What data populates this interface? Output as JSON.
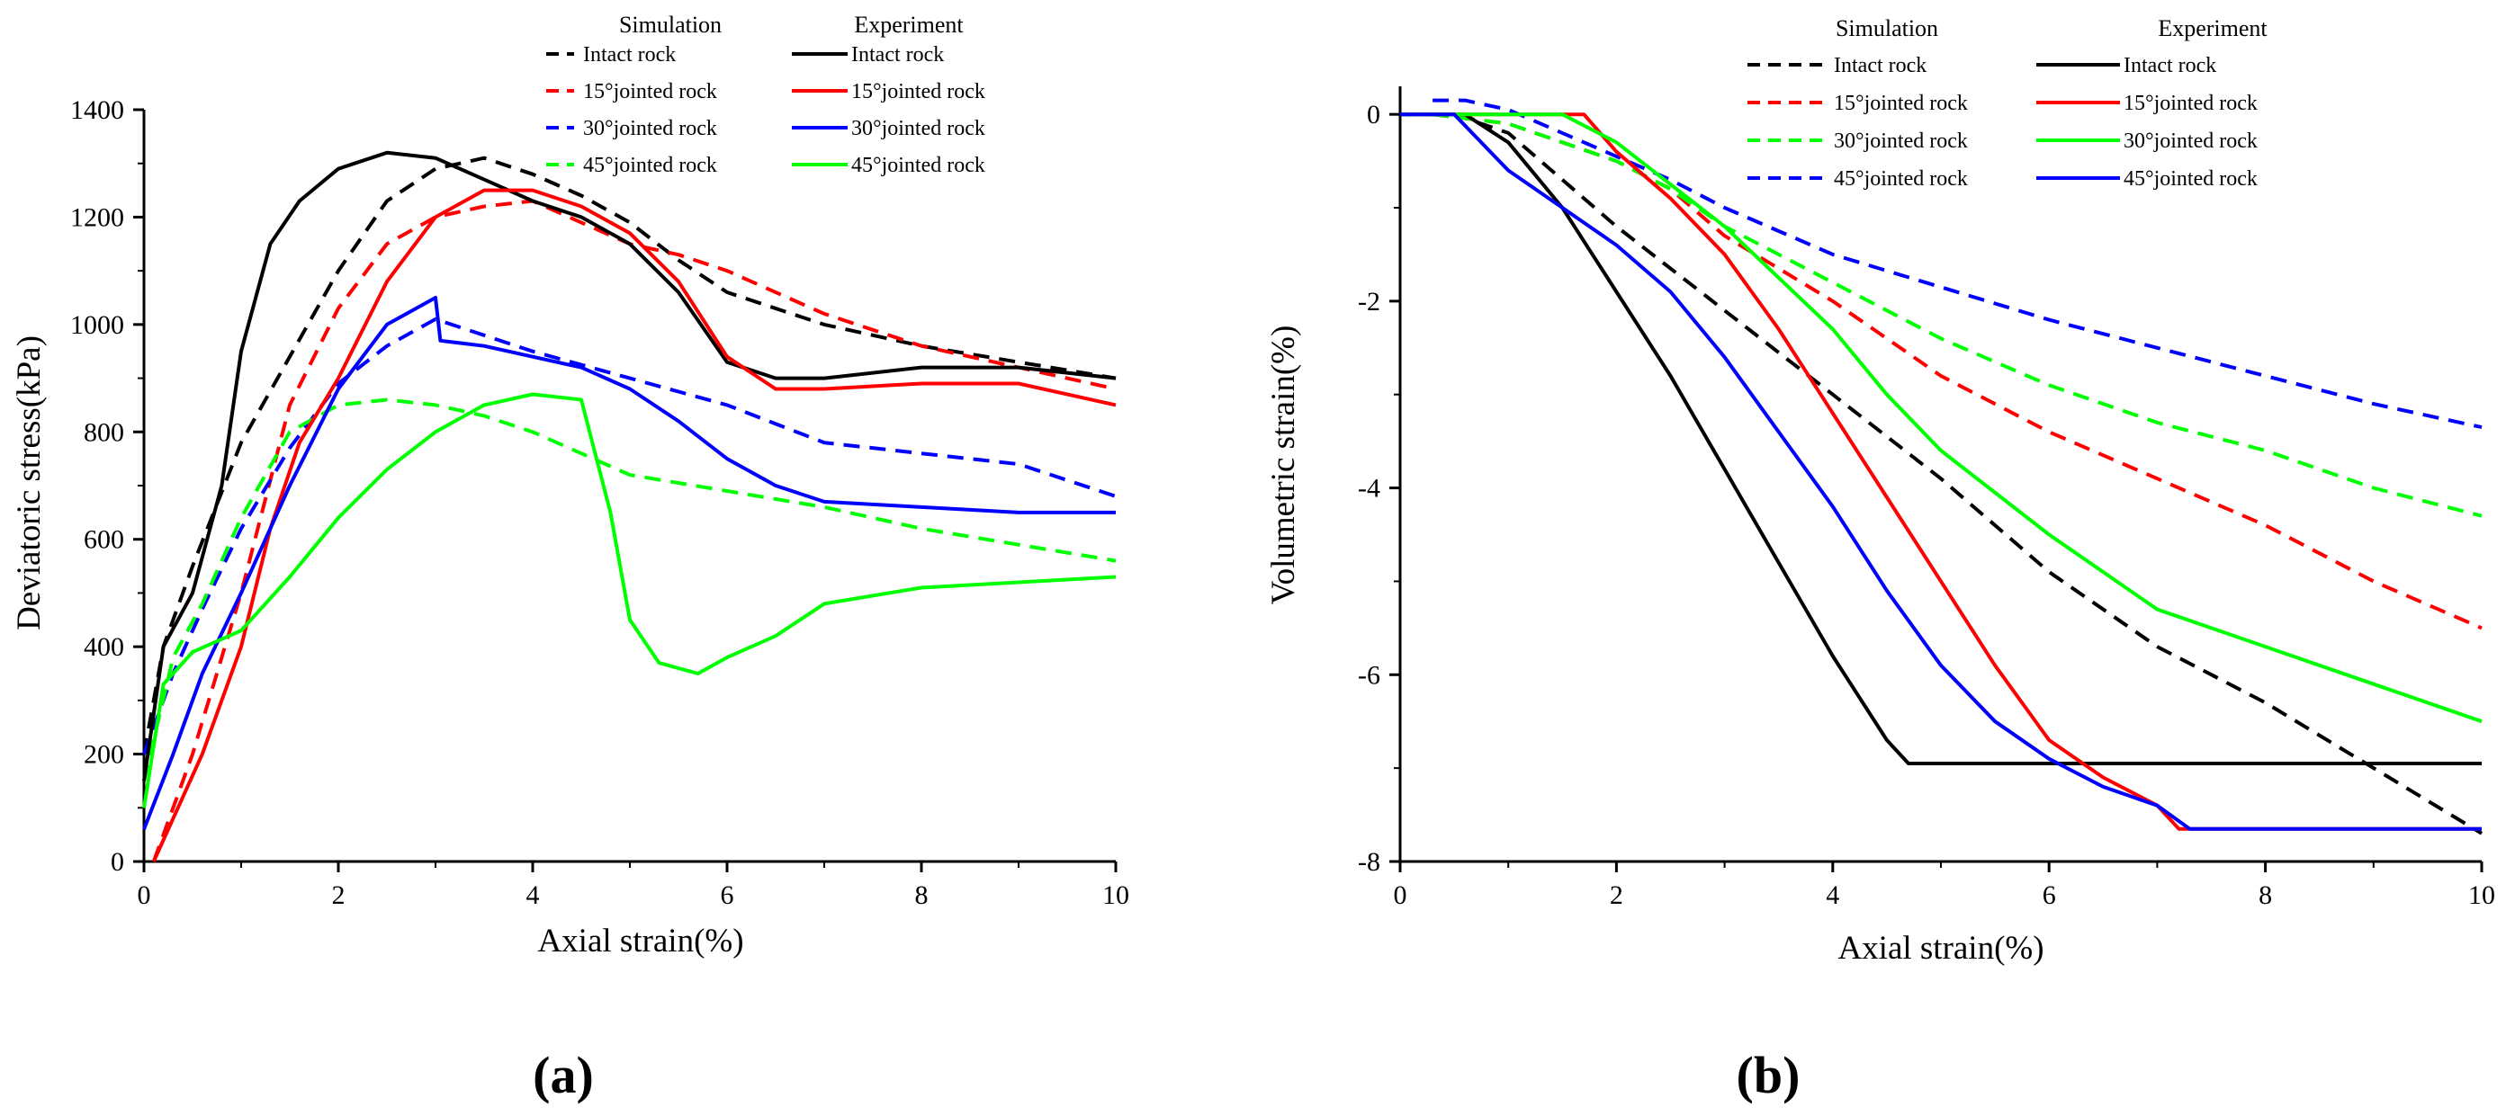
{
  "chart_data": [
    {
      "type": "line",
      "panel_label": "(a)",
      "xlabel": "Axial strain(%)",
      "ylabel": "Deviatoric stress(kPa)",
      "xlim": [
        0,
        10
      ],
      "ylim": [
        0,
        1400
      ],
      "xticks": [
        "0",
        "2",
        "4",
        "6",
        "8",
        "10"
      ],
      "yticks": [
        "0",
        "200",
        "400",
        "600",
        "800",
        "1000",
        "1200",
        "1400"
      ],
      "legend_headers": {
        "simulation": "Simulation",
        "experiment": "Experiment"
      },
      "series": [
        {
          "name": "Intact rock",
          "group": "Simulation",
          "color": "#000000",
          "dash": true,
          "x": [
            0,
            0.2,
            0.5,
            1,
            1.5,
            2,
            2.5,
            3,
            3.5,
            4,
            4.5,
            5,
            5.5,
            6,
            7,
            8,
            9,
            10
          ],
          "y": [
            200,
            400,
            550,
            780,
            940,
            1100,
            1230,
            1290,
            1310,
            1280,
            1240,
            1190,
            1120,
            1060,
            1000,
            960,
            930,
            900
          ]
        },
        {
          "name": "15°jointed rock",
          "group": "Simulation",
          "color": "#ff0000",
          "dash": true,
          "x": [
            0.1,
            0.5,
            1,
            1.5,
            2,
            2.5,
            3,
            3.5,
            4,
            4.5,
            5,
            5.5,
            6,
            7,
            8,
            9,
            10
          ],
          "y": [
            0,
            200,
            500,
            850,
            1030,
            1150,
            1200,
            1220,
            1230,
            1190,
            1150,
            1130,
            1100,
            1020,
            960,
            920,
            880
          ]
        },
        {
          "name": "30°jointed rock",
          "group": "Simulation",
          "color": "#0000ff",
          "dash": true,
          "x": [
            0,
            0.3,
            0.6,
            1,
            1.5,
            2,
            2.5,
            3,
            3.5,
            4,
            5,
            6,
            7,
            8,
            9,
            10
          ],
          "y": [
            200,
            350,
            470,
            620,
            770,
            890,
            960,
            1010,
            980,
            950,
            900,
            850,
            780,
            760,
            740,
            680
          ]
        },
        {
          "name": "45°jointed rock",
          "group": "Simulation",
          "color": "#00ff00",
          "dash": true,
          "x": [
            0,
            0.3,
            0.6,
            1,
            1.5,
            2,
            2.5,
            3,
            3.5,
            4,
            4.5,
            5,
            6,
            7,
            8,
            9,
            10
          ],
          "y": [
            150,
            380,
            480,
            640,
            800,
            850,
            860,
            850,
            830,
            800,
            760,
            720,
            690,
            660,
            620,
            590,
            560
          ]
        },
        {
          "name": "Intact rock",
          "group": "Experiment",
          "color": "#000000",
          "dash": false,
          "x": [
            0,
            0.2,
            0.5,
            0.8,
            1,
            1.3,
            1.6,
            2,
            2.5,
            3,
            3.5,
            4,
            4.5,
            5,
            5.5,
            6,
            6.5,
            7,
            8,
            9,
            10
          ],
          "y": [
            150,
            400,
            500,
            700,
            950,
            1150,
            1230,
            1290,
            1320,
            1310,
            1270,
            1230,
            1200,
            1150,
            1060,
            930,
            900,
            900,
            920,
            920,
            900
          ]
        },
        {
          "name": "15°jointed rock",
          "group": "Experiment",
          "color": "#ff0000",
          "dash": false,
          "x": [
            0.1,
            0.3,
            0.6,
            1,
            1.3,
            1.6,
            2,
            2.5,
            3,
            3.5,
            4,
            4.5,
            5,
            5.5,
            6,
            6.5,
            7,
            8,
            9,
            10
          ],
          "y": [
            0,
            80,
            200,
            400,
            620,
            780,
            900,
            1080,
            1200,
            1250,
            1250,
            1220,
            1170,
            1080,
            940,
            880,
            880,
            890,
            890,
            850
          ]
        },
        {
          "name": "30°jointed rock",
          "group": "Experiment",
          "color": "#0000ff",
          "dash": false,
          "x": [
            0,
            0.3,
            0.6,
            1,
            1.5,
            2,
            2.5,
            3,
            3.05,
            3.5,
            4,
            4.5,
            5,
            5.5,
            6,
            6.5,
            7,
            8,
            9,
            10
          ],
          "y": [
            60,
            200,
            350,
            500,
            700,
            880,
            1000,
            1050,
            970,
            960,
            940,
            920,
            880,
            820,
            750,
            700,
            670,
            660,
            650,
            650
          ]
        },
        {
          "name": "45°jointed rock",
          "group": "Experiment",
          "color": "#00ff00",
          "dash": false,
          "x": [
            0,
            0.2,
            0.5,
            1,
            1.5,
            2,
            2.5,
            3,
            3.5,
            4,
            4.5,
            4.8,
            5,
            5.3,
            5.7,
            6,
            6.5,
            7,
            8,
            9,
            10
          ],
          "y": [
            100,
            330,
            390,
            430,
            530,
            640,
            730,
            800,
            850,
            870,
            860,
            650,
            450,
            370,
            350,
            380,
            420,
            480,
            510,
            520,
            530
          ]
        }
      ]
    },
    {
      "type": "line",
      "panel_label": "(b)",
      "xlabel": "Axial strain(%)",
      "ylabel": "Volumetric strain(%)",
      "xlim": [
        0,
        10
      ],
      "ylim": [
        -8,
        0.3
      ],
      "xticks": [
        "0",
        "2",
        "4",
        "6",
        "8",
        "10"
      ],
      "yticks": [
        "0",
        "-2",
        "-4",
        "-6",
        "-8"
      ],
      "legend_headers": {
        "simulation": "Simulation",
        "experiment": "Experiment"
      },
      "series": [
        {
          "name": "Intact rock",
          "group": "Simulation",
          "color": "#000000",
          "dash": true,
          "x": [
            0,
            0.5,
            1,
            1.5,
            2,
            3,
            4,
            5,
            6,
            7,
            8,
            9,
            10
          ],
          "y": [
            0,
            0,
            -0.2,
            -0.7,
            -1.2,
            -2.1,
            -3.0,
            -3.9,
            -4.9,
            -5.7,
            -6.3,
            -7.0,
            -7.7
          ]
        },
        {
          "name": "15°jointed rock",
          "group": "Simulation",
          "color": "#ff0000",
          "dash": true,
          "x": [
            0.3,
            1,
            1.5,
            2,
            2.5,
            3,
            4,
            5,
            6,
            7,
            8,
            9,
            10
          ],
          "y": [
            0,
            -0.1,
            -0.3,
            -0.5,
            -0.8,
            -1.3,
            -2.0,
            -2.8,
            -3.4,
            -3.9,
            -4.4,
            -5.0,
            -5.5
          ]
        },
        {
          "name": "30°jointed rock",
          "group": "Simulation",
          "color": "#00ff00",
          "dash": true,
          "x": [
            0.3,
            1,
            1.5,
            2,
            2.5,
            3,
            4,
            5,
            6,
            7,
            8,
            9,
            10
          ],
          "y": [
            0,
            -0.1,
            -0.3,
            -0.5,
            -0.8,
            -1.2,
            -1.8,
            -2.4,
            -2.9,
            -3.3,
            -3.6,
            -4.0,
            -4.3
          ]
        },
        {
          "name": "45°jointed rock",
          "group": "Simulation",
          "color": "#0000ff",
          "dash": true,
          "x": [
            0.3,
            0.6,
            1,
            1.5,
            2,
            2.5,
            3,
            4,
            5,
            6,
            7,
            8,
            9,
            10
          ],
          "y": [
            0.15,
            0.15,
            0.05,
            -0.2,
            -0.45,
            -0.7,
            -1.0,
            -1.5,
            -1.85,
            -2.2,
            -2.5,
            -2.8,
            -3.1,
            -3.35
          ]
        },
        {
          "name": "Intact rock",
          "group": "Experiment",
          "color": "#000000",
          "dash": false,
          "x": [
            0,
            0.6,
            1,
            1.5,
            2,
            2.5,
            3,
            3.5,
            4,
            4.5,
            4.7,
            6,
            8,
            10
          ],
          "y": [
            0,
            0,
            -0.3,
            -1.0,
            -1.9,
            -2.8,
            -3.8,
            -4.8,
            -5.8,
            -6.7,
            -6.95,
            -6.95,
            -6.95,
            -6.95
          ]
        },
        {
          "name": "15°jointed rock",
          "group": "Experiment",
          "color": "#ff0000",
          "dash": false,
          "x": [
            0,
            1.7,
            2,
            2.5,
            3,
            3.5,
            4,
            4.5,
            5,
            5.5,
            6,
            6.5,
            7,
            7.2,
            8,
            9,
            10
          ],
          "y": [
            0,
            0,
            -0.4,
            -0.9,
            -1.5,
            -2.3,
            -3.2,
            -4.1,
            -5.0,
            -5.9,
            -6.7,
            -7.1,
            -7.4,
            -7.65,
            -7.65,
            -7.65,
            -7.65
          ]
        },
        {
          "name": "30°jointed rock",
          "group": "Experiment",
          "color": "#00ff00",
          "dash": false,
          "x": [
            0,
            1.5,
            2,
            3,
            4,
            4.5,
            5,
            6,
            7,
            8,
            9,
            10
          ],
          "y": [
            0,
            0,
            -0.3,
            -1.2,
            -2.3,
            -3.0,
            -3.6,
            -4.5,
            -5.3,
            -5.7,
            -6.1,
            -6.5
          ]
        },
        {
          "name": "45°jointed rock",
          "group": "Experiment",
          "color": "#0000ff",
          "dash": false,
          "x": [
            0,
            0.5,
            1,
            1.5,
            2,
            2.5,
            3,
            3.5,
            4,
            4.5,
            5,
            5.5,
            6,
            6.5,
            7,
            7.3,
            8,
            9,
            10
          ],
          "y": [
            0,
            0,
            -0.6,
            -1.0,
            -1.4,
            -1.9,
            -2.6,
            -3.4,
            -4.2,
            -5.1,
            -5.9,
            -6.5,
            -6.9,
            -7.2,
            -7.4,
            -7.65,
            -7.65,
            -7.65,
            -7.65
          ]
        }
      ]
    }
  ]
}
